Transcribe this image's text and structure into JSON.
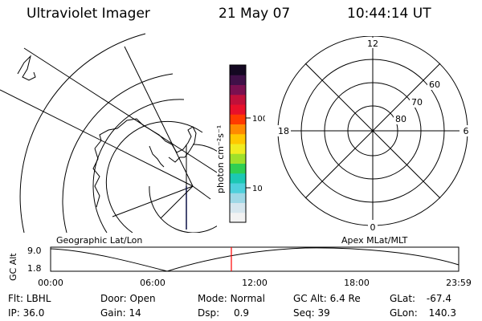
{
  "header": {
    "instrument": "Ultraviolet Imager",
    "date": "21 May 07",
    "time": "10:44:14 UT"
  },
  "colorbar": {
    "unit_label": "photon cm⁻²s⁻¹",
    "ticks": [
      "100",
      "10"
    ],
    "colors": [
      "#f2f2f2",
      "#d6e6ee",
      "#9fd8e6",
      "#4fd0dc",
      "#1cc8b4",
      "#2fcf52",
      "#9fe02a",
      "#f0ec20",
      "#ffc800",
      "#ff8a00",
      "#ff3a00",
      "#e8102a",
      "#c0103a",
      "#7a1050",
      "#401048",
      "#140822"
    ]
  },
  "map": {
    "label": "Geographic Lat/Lon"
  },
  "polar": {
    "label": "Apex MLat/MLT",
    "mlt_labels": {
      "top": "12",
      "right": "6",
      "bottom": "0",
      "left": "18"
    },
    "lat_labels": [
      "60",
      "70",
      "80"
    ]
  },
  "timeline": {
    "y_axis_label": "GC Alt",
    "y_ticks": [
      "9.0",
      "1.8"
    ],
    "x_ticks": [
      "00:00",
      "06:00",
      "12:00",
      "18:00",
      "23:59"
    ],
    "current_time_marker_color": "#ff0000"
  },
  "status": {
    "col1": [
      {
        "label": "Flt:",
        "value": "LBHL"
      },
      {
        "label": "IP:",
        "value": "36.0"
      }
    ],
    "col2": [
      {
        "label": "Door:",
        "value": "Open"
      },
      {
        "label": "Gain:",
        "value": "14"
      }
    ],
    "col3": [
      {
        "label": "Mode:",
        "value": "Normal"
      },
      {
        "label": "Dsp:",
        "value": "0.9"
      }
    ],
    "col4": [
      {
        "label": "GC Alt:",
        "value": "6.4 Re"
      },
      {
        "label": "Seq:",
        "value": "39"
      }
    ],
    "col5": [
      {
        "label": "GLat:",
        "value": "-67.4"
      },
      {
        "label": "GLon:",
        "value": "140.3"
      }
    ]
  }
}
